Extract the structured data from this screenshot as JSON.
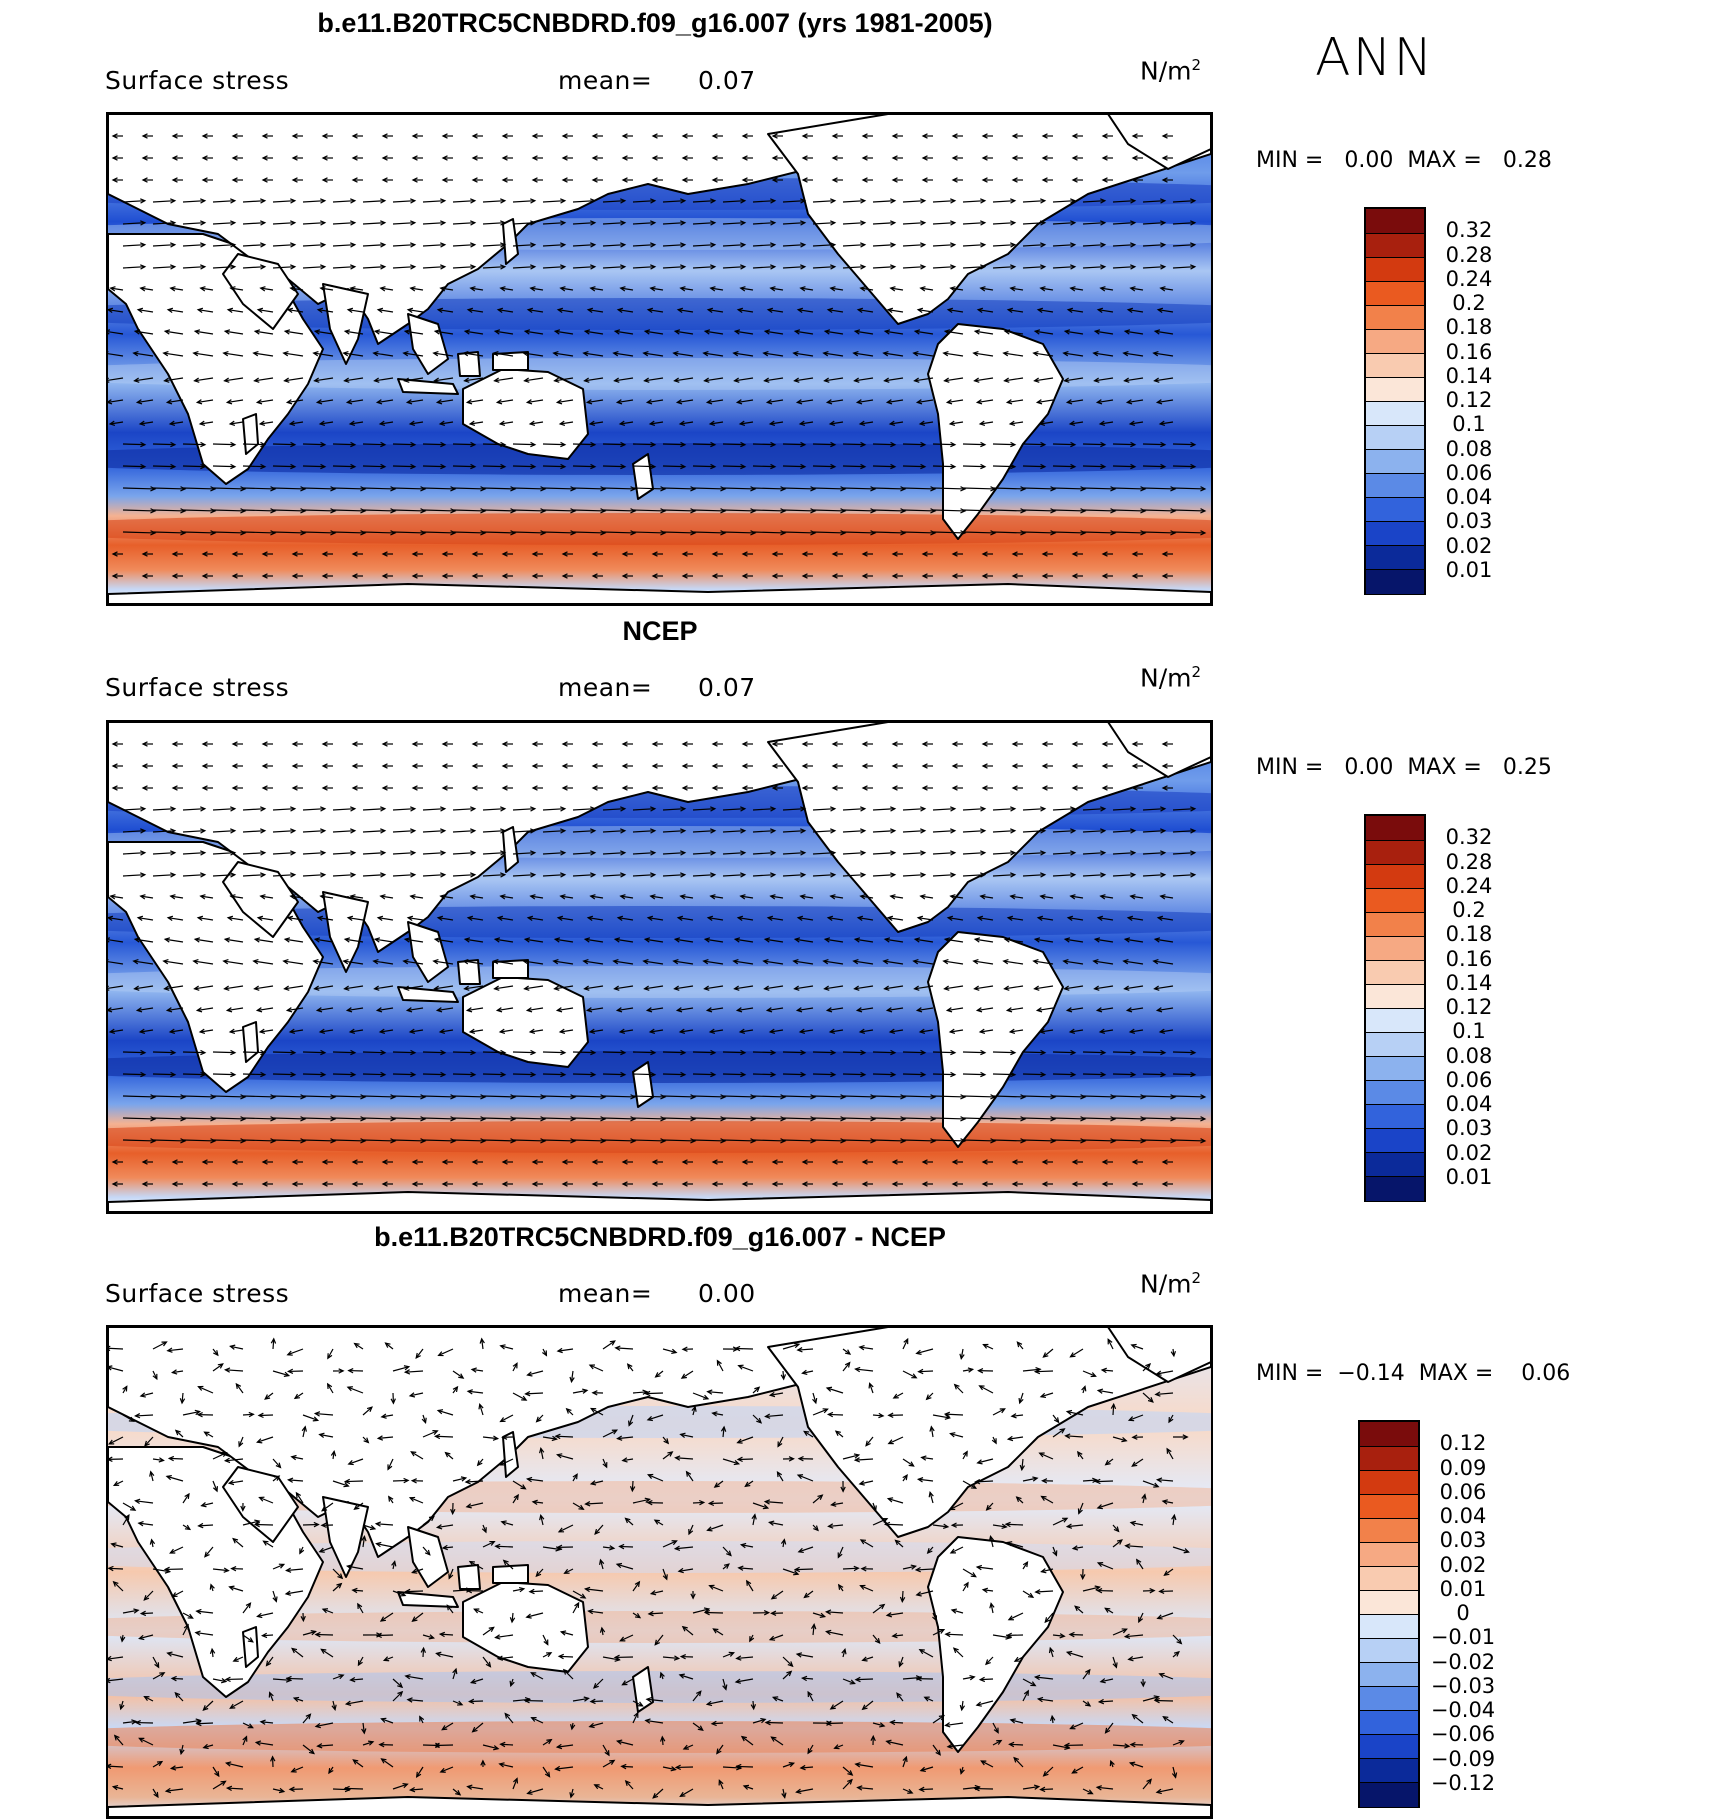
{
  "header": {
    "season": "ANN"
  },
  "panels": [
    {
      "title": "b.e11.B20TRC5CNBDRD.f09_g16.007 (yrs 1981-2005)",
      "variable": "Surface stress",
      "mean_label": "mean=",
      "mean_value": "0.07",
      "units": "N/m",
      "units_sup": "2",
      "min_label": "MIN =",
      "min_value": "0.00",
      "max_label": "MAX =",
      "max_value": "0.28",
      "colorbar_labels": [
        "0.32",
        "0.28",
        "0.24",
        "0.2",
        "0.18",
        "0.16",
        "0.14",
        "0.12",
        "0.1",
        "0.08",
        "0.06",
        "0.04",
        "0.03",
        "0.02",
        "0.01"
      ]
    },
    {
      "title": "NCEP",
      "variable": "Surface stress",
      "mean_label": "mean=",
      "mean_value": "0.07",
      "units": "N/m",
      "units_sup": "2",
      "min_label": "MIN =",
      "min_value": "0.00",
      "max_label": "MAX =",
      "max_value": "0.25",
      "colorbar_labels": [
        "0.32",
        "0.28",
        "0.24",
        "0.2",
        "0.18",
        "0.16",
        "0.14",
        "0.12",
        "0.1",
        "0.08",
        "0.06",
        "0.04",
        "0.03",
        "0.02",
        "0.01"
      ]
    },
    {
      "title": "b.e11.B20TRC5CNBDRD.f09_g16.007 - NCEP",
      "variable": "Surface stress",
      "mean_label": "mean=",
      "mean_value": "0.00",
      "units": "N/m",
      "units_sup": "2",
      "min_label": "MIN =",
      "min_value": "−0.14",
      "max_label": "MAX =",
      "max_value": "0.06",
      "colorbar_labels": [
        "0.12",
        "0.09",
        "0.06",
        "0.04",
        "0.03",
        "0.02",
        "0.01",
        "0",
        "−0.01",
        "−0.02",
        "−0.03",
        "−0.04",
        "−0.06",
        "−0.09",
        "−0.12"
      ]
    }
  ],
  "colors": {
    "sequential": [
      "#7a0c0c",
      "#a8200e",
      "#d33a10",
      "#ea5a20",
      "#f2814a",
      "#f6a983",
      "#f9cbb0",
      "#fbe6d8",
      "#d8e7fa",
      "#b7d0f5",
      "#8cb2ee",
      "#5b8ae6",
      "#3263dc",
      "#1a44c8",
      "#0b2a9a",
      "#06156a"
    ],
    "land": "#ffffff",
    "coast": "#000000",
    "vector": "#000000"
  }
}
